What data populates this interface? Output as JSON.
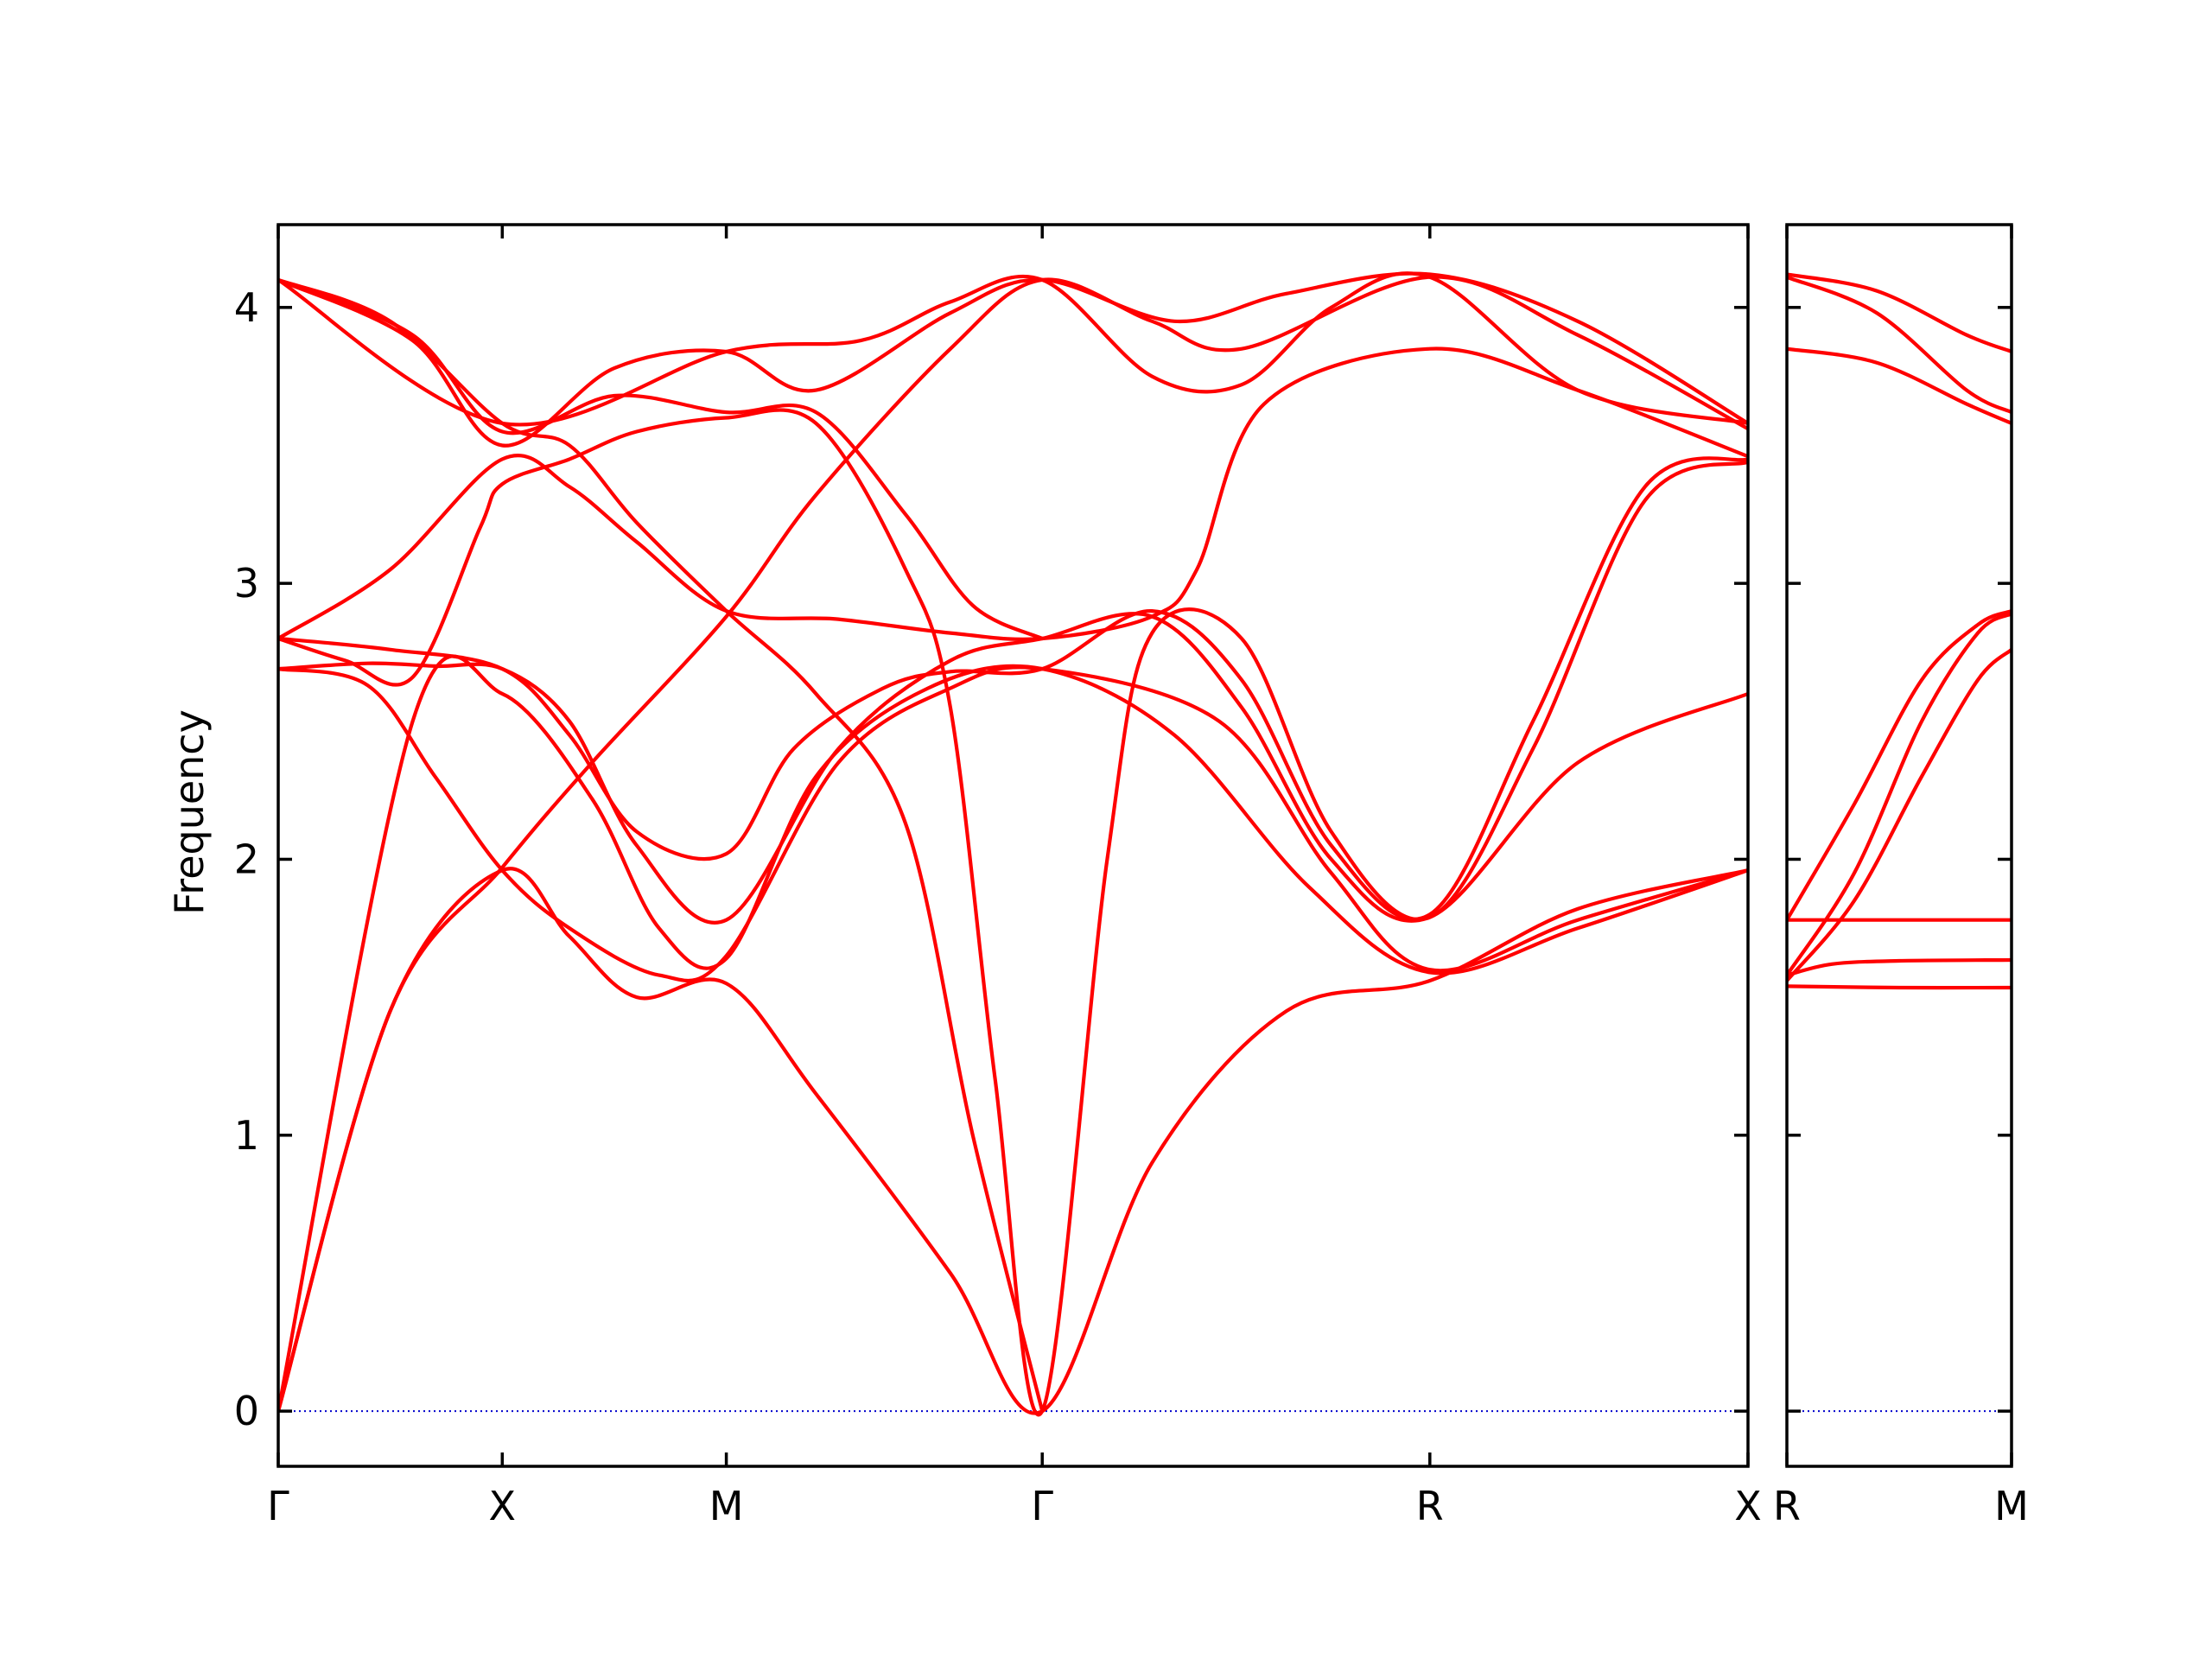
{
  "chart_data": {
    "type": "line",
    "ylabel": "Frequency",
    "ylim": [
      -0.2,
      4.3
    ],
    "yticks": [
      0,
      1,
      2,
      3,
      4
    ],
    "grid": false,
    "colors": {
      "band": "#ff0000",
      "zero_line": "#0000cc",
      "frame": "#000000"
    },
    "panels": [
      {
        "xlim": [
          0,
          6.56
        ],
        "points": [
          {
            "x": 0,
            "label": "Γ"
          },
          {
            "x": 1.0,
            "label": "X"
          },
          {
            "x": 2.0,
            "label": "M"
          },
          {
            "x": 3.41,
            "label": "Γ"
          },
          {
            "x": 5.14,
            "label": "R"
          },
          {
            "x": 6.56,
            "label": "X"
          }
        ],
        "series": [
          {
            "values": [
              [
                0,
                0
              ],
              [
                0.5,
                1.45
              ],
              [
                1.0,
                1.96
              ],
              [
                1.3,
                1.72
              ],
              [
                1.6,
                1.5
              ],
              [
                2.0,
                1.55
              ],
              [
                2.4,
                1.15
              ],
              [
                3.0,
                0.5
              ],
              [
                3.41,
                0
              ],
              [
                3.9,
                0.9
              ],
              [
                4.5,
                1.45
              ],
              [
                5.14,
                1.56
              ],
              [
                5.8,
                1.82
              ],
              [
                6.56,
                1.96
              ]
            ]
          },
          {
            "values": [
              [
                0,
                0
              ],
              [
                0.6,
                2.5
              ],
              [
                1.0,
                2.6
              ],
              [
                1.4,
                2.22
              ],
              [
                1.7,
                1.75
              ],
              [
                2.0,
                1.64
              ],
              [
                2.4,
                2.3
              ],
              [
                2.9,
                2.62
              ],
              [
                3.41,
                2.69
              ],
              [
                4.0,
                2.45
              ],
              [
                4.6,
                1.9
              ],
              [
                5.14,
                1.59
              ],
              [
                5.8,
                1.75
              ],
              [
                6.56,
                1.96
              ]
            ]
          },
          {
            "values": [
              [
                0,
                2.69
              ],
              [
                0.4,
                2.63
              ],
              [
                0.7,
                2.3
              ],
              [
                1.0,
                1.96
              ],
              [
                1.3,
                1.75
              ],
              [
                1.7,
                1.58
              ],
              [
                2.0,
                1.65
              ],
              [
                2.5,
                2.35
              ],
              [
                3.0,
                2.62
              ],
              [
                3.41,
                2.69
              ],
              [
                4.2,
                2.5
              ],
              [
                4.7,
                1.95
              ],
              [
                5.14,
                1.6
              ],
              [
                5.8,
                1.78
              ],
              [
                6.56,
                1.96
              ]
            ]
          },
          {
            "values": [
              [
                0,
                2.69
              ],
              [
                0.4,
                2.71
              ],
              [
                0.7,
                2.7
              ],
              [
                1.0,
                2.69
              ],
              [
                1.3,
                2.5
              ],
              [
                1.6,
                2.05
              ],
              [
                2.0,
                1.78
              ],
              [
                2.5,
                2.4
              ],
              [
                3.0,
                2.72
              ],
              [
                3.41,
                2.8
              ],
              [
                3.9,
                2.88
              ],
              [
                4.3,
                2.55
              ],
              [
                4.7,
                2.0
              ],
              [
                5.14,
                1.79
              ],
              [
                5.8,
                2.35
              ],
              [
                6.56,
                2.6
              ]
            ]
          },
          {
            "values": [
              [
                0,
                2.8
              ],
              [
                0.3,
                2.72
              ],
              [
                0.6,
                2.66
              ],
              [
                0.9,
                3.2
              ],
              [
                1.0,
                3.36
              ],
              [
                1.3,
                3.45
              ],
              [
                1.6,
                3.55
              ],
              [
                2.0,
                3.6
              ],
              [
                2.4,
                3.58
              ],
              [
                2.8,
                3.05
              ],
              [
                3.0,
                2.55
              ],
              [
                3.2,
                1.2
              ],
              [
                3.41,
                0
              ],
              [
                3.7,
                2.0
              ],
              [
                3.9,
                2.82
              ],
              [
                4.3,
                2.8
              ],
              [
                4.7,
                2.1
              ],
              [
                5.14,
                1.79
              ],
              [
                5.6,
                2.4
              ],
              [
                6.1,
                3.3
              ],
              [
                6.56,
                3.44
              ]
            ]
          },
          {
            "values": [
              [
                0,
                2.8
              ],
              [
                0.5,
                2.76
              ],
              [
                1.0,
                2.69
              ],
              [
                1.3,
                2.45
              ],
              [
                1.6,
                2.1
              ],
              [
                2.0,
                2.02
              ],
              [
                2.3,
                2.4
              ],
              [
                2.7,
                2.62
              ],
              [
                3.0,
                2.68
              ],
              [
                3.41,
                2.69
              ],
              [
                3.9,
                2.9
              ],
              [
                4.3,
                2.65
              ],
              [
                4.7,
                2.05
              ],
              [
                5.14,
                1.8
              ],
              [
                5.6,
                2.5
              ],
              [
                6.1,
                3.35
              ],
              [
                6.56,
                3.45
              ]
            ]
          },
          {
            "values": [
              [
                0,
                2.8
              ],
              [
                0.5,
                3.05
              ],
              [
                1.0,
                3.45
              ],
              [
                1.3,
                3.35
              ],
              [
                1.6,
                3.15
              ],
              [
                2.0,
                2.9
              ],
              [
                2.5,
                2.87
              ],
              [
                3.0,
                2.82
              ],
              [
                3.41,
                2.8
              ],
              [
                3.9,
                2.88
              ],
              [
                4.1,
                3.05
              ],
              [
                4.4,
                3.65
              ],
              [
                5.14,
                3.85
              ],
              [
                5.8,
                3.7
              ],
              [
                6.56,
                3.46
              ]
            ]
          },
          {
            "values": [
              [
                0,
                4.1
              ],
              [
                0.5,
                3.95
              ],
              [
                1.0,
                3.58
              ],
              [
                1.3,
                3.5
              ],
              [
                1.6,
                3.22
              ],
              [
                2.0,
                2.9
              ],
              [
                2.4,
                2.6
              ],
              [
                2.8,
                2.13
              ],
              [
                3.1,
                1.0
              ],
              [
                3.41,
                0
              ]
            ]
          },
          {
            "values": [
              [
                0,
                0
              ],
              [
                0.5,
                1.45
              ],
              [
                1.0,
                1.97
              ],
              [
                1.4,
                2.35
              ],
              [
                2.0,
                2.88
              ],
              [
                2.4,
                3.32
              ],
              [
                3.0,
                3.85
              ],
              [
                3.41,
                4.1
              ],
              [
                3.9,
                3.95
              ],
              [
                4.3,
                3.85
              ],
              [
                5.14,
                4.11
              ],
              [
                5.8,
                3.9
              ],
              [
                6.56,
                3.56
              ]
            ]
          },
          {
            "values": [
              [
                0,
                4.1
              ],
              [
                0.6,
                3.9
              ],
              [
                1.0,
                3.55
              ],
              [
                1.5,
                3.68
              ],
              [
                2.0,
                3.62
              ],
              [
                2.4,
                3.62
              ],
              [
                2.8,
                3.25
              ],
              [
                3.1,
                2.92
              ],
              [
                3.41,
                2.8
              ]
            ]
          },
          {
            "values": [
              [
                0,
                4.1
              ],
              [
                0.6,
                3.88
              ],
              [
                1.0,
                3.5
              ],
              [
                1.5,
                3.78
              ],
              [
                2.0,
                3.84
              ],
              [
                2.4,
                3.7
              ],
              [
                3.0,
                3.98
              ],
              [
                3.41,
                4.1
              ],
              [
                4.0,
                3.95
              ],
              [
                4.5,
                4.05
              ],
              [
                5.14,
                4.12
              ],
              [
                5.8,
                3.95
              ],
              [
                6.56,
                3.58
              ]
            ]
          },
          {
            "values": [
              [
                0,
                4.1
              ],
              [
                1.0,
                3.58
              ],
              [
                2.0,
                3.84
              ],
              [
                2.6,
                3.88
              ],
              [
                3.0,
                4.02
              ],
              [
                3.41,
                4.1
              ],
              [
                3.9,
                3.75
              ],
              [
                4.3,
                3.72
              ],
              [
                4.7,
                4.0
              ],
              [
                5.14,
                4.11
              ],
              [
                5.8,
                3.7
              ],
              [
                6.56,
                3.58
              ]
            ]
          }
        ]
      },
      {
        "xlim": [
          0,
          1
        ],
        "points": [
          {
            "x": 0,
            "label": "R"
          },
          {
            "x": 1,
            "label": "M"
          }
        ],
        "series": [
          {
            "values": [
              [
                0,
                1.54
              ],
              [
                0.5,
                1.535
              ],
              [
                1,
                1.535
              ]
            ]
          },
          {
            "values": [
              [
                0,
                1.58
              ],
              [
                0.2,
                1.62
              ],
              [
                0.5,
                1.632
              ],
              [
                1,
                1.635
              ]
            ]
          },
          {
            "values": [
              [
                0,
                1.78
              ],
              [
                0.5,
                1.78
              ],
              [
                1,
                1.78
              ]
            ]
          },
          {
            "values": [
              [
                0,
                1.56
              ],
              [
                0.3,
                1.85
              ],
              [
                0.6,
                2.3
              ],
              [
                0.85,
                2.65
              ],
              [
                1,
                2.76
              ]
            ]
          },
          {
            "values": [
              [
                0,
                1.58
              ],
              [
                0.3,
                1.95
              ],
              [
                0.6,
                2.5
              ],
              [
                0.85,
                2.82
              ],
              [
                1,
                2.89
              ]
            ]
          },
          {
            "values": [
              [
                0,
                1.78
              ],
              [
                0.3,
                2.2
              ],
              [
                0.6,
                2.65
              ],
              [
                0.85,
                2.85
              ],
              [
                1,
                2.9
              ]
            ]
          },
          {
            "values": [
              [
                0,
                3.85
              ],
              [
                0.4,
                3.8
              ],
              [
                0.8,
                3.65
              ],
              [
                1,
                3.58
              ]
            ]
          },
          {
            "values": [
              [
                0,
                4.11
              ],
              [
                0.4,
                3.98
              ],
              [
                0.8,
                3.7
              ],
              [
                1,
                3.62
              ]
            ]
          },
          {
            "values": [
              [
                0,
                4.12
              ],
              [
                0.4,
                4.06
              ],
              [
                0.8,
                3.9
              ],
              [
                1,
                3.84
              ]
            ]
          }
        ]
      }
    ]
  }
}
